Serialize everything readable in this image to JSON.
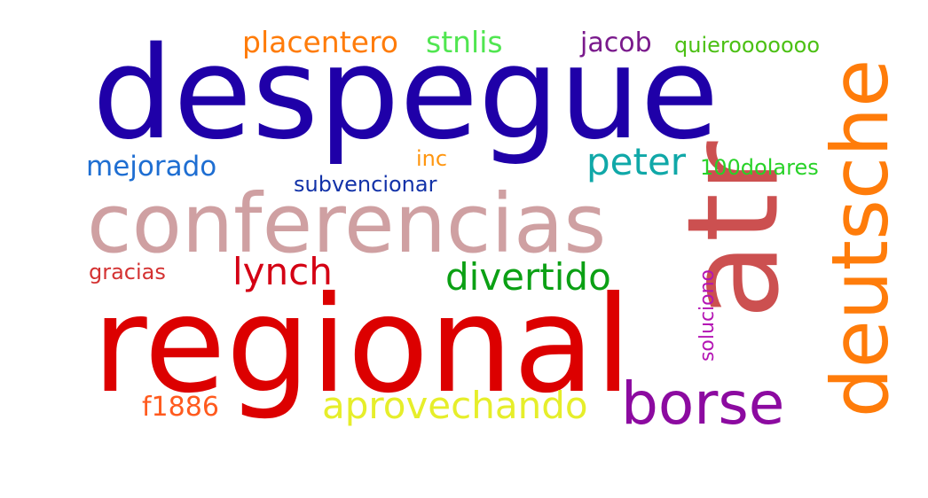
{
  "words": [
    {
      "key": "despegue",
      "text": "despegue",
      "color": "#1f00a8"
    },
    {
      "key": "conferencias",
      "text": "conferencias",
      "color": "#cfa0a2"
    },
    {
      "key": "regional",
      "text": "regional",
      "color": "#dc0000"
    },
    {
      "key": "atr",
      "text": "atr",
      "color": "#cc5050"
    },
    {
      "key": "deutsche",
      "text": "deutsche",
      "color": "#ff7c0a"
    },
    {
      "key": "borse",
      "text": "borse",
      "color": "#8c0aa0"
    },
    {
      "key": "aprovechando",
      "text": "aprovechando",
      "color": "#e6ee2a"
    },
    {
      "key": "divertido",
      "text": "divertido",
      "color": "#0ba014"
    },
    {
      "key": "lynch",
      "text": "lynch",
      "color": "#d40014"
    },
    {
      "key": "peter",
      "text": "peter",
      "color": "#10a8a8"
    },
    {
      "key": "placentero",
      "text": "placentero",
      "color": "#ff7c0a"
    },
    {
      "key": "stnlis",
      "text": "stnlis",
      "color": "#50e650"
    },
    {
      "key": "jacob",
      "text": "jacob",
      "color": "#7a1a8c"
    },
    {
      "key": "quierooooooo",
      "text": "quierooooooo",
      "color": "#4cc014"
    },
    {
      "key": "mejorado",
      "text": "mejorado",
      "color": "#1e6ed2"
    },
    {
      "key": "inc",
      "text": "inc",
      "color": "#ff960f"
    },
    {
      "key": "100dolares",
      "text": "100dolares",
      "color": "#28d228"
    },
    {
      "key": "subvencionar",
      "text": "subvencionar",
      "color": "#1232a8"
    },
    {
      "key": "gracias",
      "text": "gracias",
      "color": "#d43232"
    },
    {
      "key": "soluciono",
      "text": "soluciono",
      "color": "#b414b4"
    },
    {
      "key": "f1886",
      "text": "f1886",
      "color": "#ff5a1e"
    }
  ]
}
